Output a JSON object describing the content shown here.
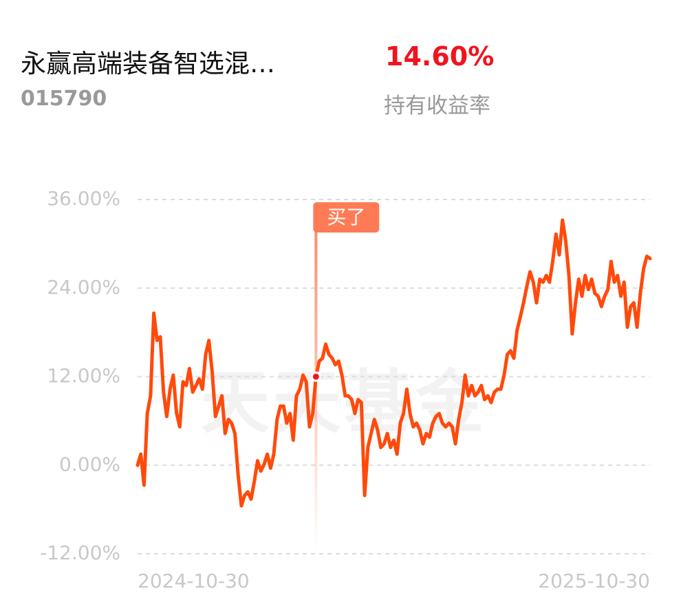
{
  "header": {
    "title": "永赢高端装备智选混…",
    "code": "015790",
    "return": "14.60%",
    "return_label": "持有收益率"
  },
  "chart_data": {
    "type": "line",
    "watermark": "天天基金",
    "annotation": "买了",
    "color": "#ff4a0c",
    "categories": [
      "2024-10-30",
      null,
      null,
      null,
      null,
      null,
      null,
      null,
      null,
      null,
      null,
      null,
      null,
      null,
      null,
      null,
      null,
      null,
      null,
      null,
      null,
      null,
      null,
      null,
      null,
      null,
      null,
      null,
      null,
      null,
      null,
      null,
      null,
      null,
      null,
      null,
      null,
      null,
      null,
      null,
      null,
      null,
      null,
      null,
      null,
      null,
      null,
      null,
      null,
      null,
      null,
      null,
      null,
      null,
      null,
      null,
      null,
      null,
      null,
      null,
      null,
      null,
      null,
      null,
      null,
      null,
      null,
      null,
      null,
      null,
      null,
      null,
      null,
      null,
      null,
      null,
      null,
      null,
      null,
      null,
      null,
      null,
      null,
      null,
      null,
      null,
      null,
      null,
      null,
      null,
      null,
      null,
      null,
      null,
      null,
      null,
      null,
      null,
      null,
      null,
      null,
      null,
      null,
      null,
      null,
      null,
      null,
      null,
      null,
      null,
      null,
      null,
      null,
      null,
      null,
      null,
      null,
      null,
      null,
      null,
      null,
      null,
      null,
      null,
      null,
      null,
      null,
      null,
      null,
      null,
      null,
      null,
      null,
      null,
      null,
      null,
      null,
      null,
      null,
      null,
      null,
      null,
      null,
      null,
      null,
      null,
      null,
      null,
      null,
      null,
      null,
      null,
      null,
      null,
      null,
      null,
      null,
      null,
      "2025-10-30"
    ],
    "values": [
      0,
      1.5,
      -2.7,
      7,
      9.4,
      20.6,
      16.9,
      17.4,
      9.9,
      6.6,
      10.3,
      12.2,
      7.1,
      5.2,
      11.3,
      10.8,
      13.1,
      9.9,
      10.8,
      11.7,
      10.3,
      15,
      16.9,
      12.7,
      6.6,
      8,
      9.4,
      4.3,
      6.2,
      5.7,
      4.3,
      -1.3,
      -5.5,
      -4.1,
      -3.6,
      -4.6,
      -2.2,
      0.6,
      -0.8,
      0.1,
      1.5,
      -0.4,
      1.5,
      6.2,
      8,
      8,
      5.7,
      7,
      3.4,
      9.4,
      10.3,
      12.2,
      11.3,
      5.2,
      7,
      12,
      14.1,
      14.5,
      16.4,
      15,
      14.5,
      13.6,
      14.1,
      12.2,
      9.4,
      9.4,
      8.9,
      7,
      8.9,
      8.5,
      -4.1,
      2.4,
      4.3,
      6.2,
      4.8,
      2.4,
      2.9,
      4.3,
      2.4,
      3.4,
      1.5,
      5.7,
      7,
      10.3,
      7,
      5.2,
      5.7,
      4.8,
      2.9,
      4.3,
      3.8,
      5.7,
      6.6,
      7,
      5.7,
      5.2,
      5.7,
      5.2,
      2.9,
      6.2,
      8.5,
      12.2,
      9.4,
      10.8,
      9.4,
      9.9,
      10.8,
      8.9,
      9.4,
      8.5,
      9.9,
      10.3,
      10.3,
      12.2,
      15,
      15.5,
      14.5,
      18.3,
      20.1,
      22,
      24.2,
      26.2,
      24.8,
      22,
      25.2,
      24.8,
      25.7,
      24.8,
      27.6,
      31.3,
      28.5,
      33.2,
      30.4,
      25.7,
      17.8,
      22,
      25.2,
      22.9,
      25.7,
      23.8,
      25.2,
      23.3,
      22.9,
      21.5,
      22.9,
      23.8,
      27.6,
      24.8,
      25.7,
      22.9,
      24.8,
      18.7,
      21.5,
      22,
      18.7,
      23.3,
      26.6,
      28.3,
      28
    ],
    "ylim": [
      -12,
      36
    ],
    "yticks": [
      {
        "value": -12,
        "label": "-12.00%"
      },
      {
        "value": 0,
        "label": "0.00%"
      },
      {
        "value": 12,
        "label": "12.00%"
      },
      {
        "value": 24,
        "label": "24.00%"
      },
      {
        "value": 36,
        "label": "36.00%"
      }
    ],
    "grid": true
  }
}
